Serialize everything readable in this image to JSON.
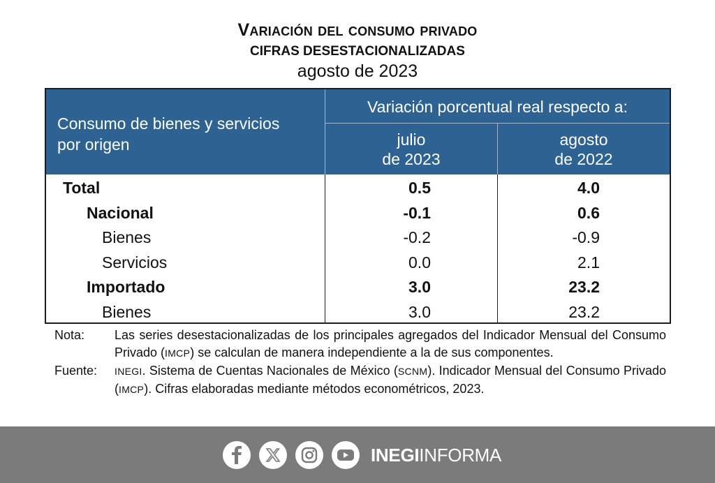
{
  "header": {
    "title": "Variación del consumo privado",
    "subtitle": "CIFRAS DESESTACIONALIZADAS",
    "period": "agosto de 2023"
  },
  "table": {
    "row_header_line1": "Consumo de bienes y servicios",
    "row_header_line2": "por origen",
    "span_header": "Variación porcentual real respecto a:",
    "col1_line1": "julio",
    "col1_line2": "de 2023",
    "col2_line1": "agosto",
    "col2_line2": "de 2022",
    "rows": [
      {
        "label": "Total",
        "v1": "0.5",
        "v2": "4.0"
      },
      {
        "label": "Nacional",
        "v1": "-0.1",
        "v2": "0.6"
      },
      {
        "label": "Bienes",
        "v1": "-0.2",
        "v2": "-0.9"
      },
      {
        "label": "Servicios",
        "v1": "0.0",
        "v2": "2.1"
      },
      {
        "label": "Importado",
        "v1": "3.0",
        "v2": "23.2"
      },
      {
        "label": "Bienes",
        "v1": "3.0",
        "v2": "23.2"
      }
    ]
  },
  "notes": {
    "nota_key": "Nota:",
    "nota_a": "Las series desestacionalizadas de los principales agregados del Indicador Mensual del Consumo Privado (",
    "nota_abbr": "IMCP",
    "nota_b": ") se calculan de manera independiente a la de sus componentes.",
    "fuente_key": "Fuente:",
    "fuente_abbr1": "INEGI",
    "fuente_a": ". Sistema de Cuentas Nacionales de México (",
    "fuente_abbr2": "SCNM",
    "fuente_b": "). Indicador Mensual del Consumo Privado (",
    "fuente_abbr3": "IMCP",
    "fuente_c": "). Cifras elaboradas mediante métodos econométricos, 2023."
  },
  "footer": {
    "icons": [
      "facebook-icon",
      "x-icon",
      "instagram-icon",
      "youtube-icon"
    ],
    "brand_bold": "INEGI",
    "brand_light": "INFORMA",
    "bg_color": "#7b7b7b"
  },
  "colors": {
    "header_blue": "#2d6293"
  }
}
